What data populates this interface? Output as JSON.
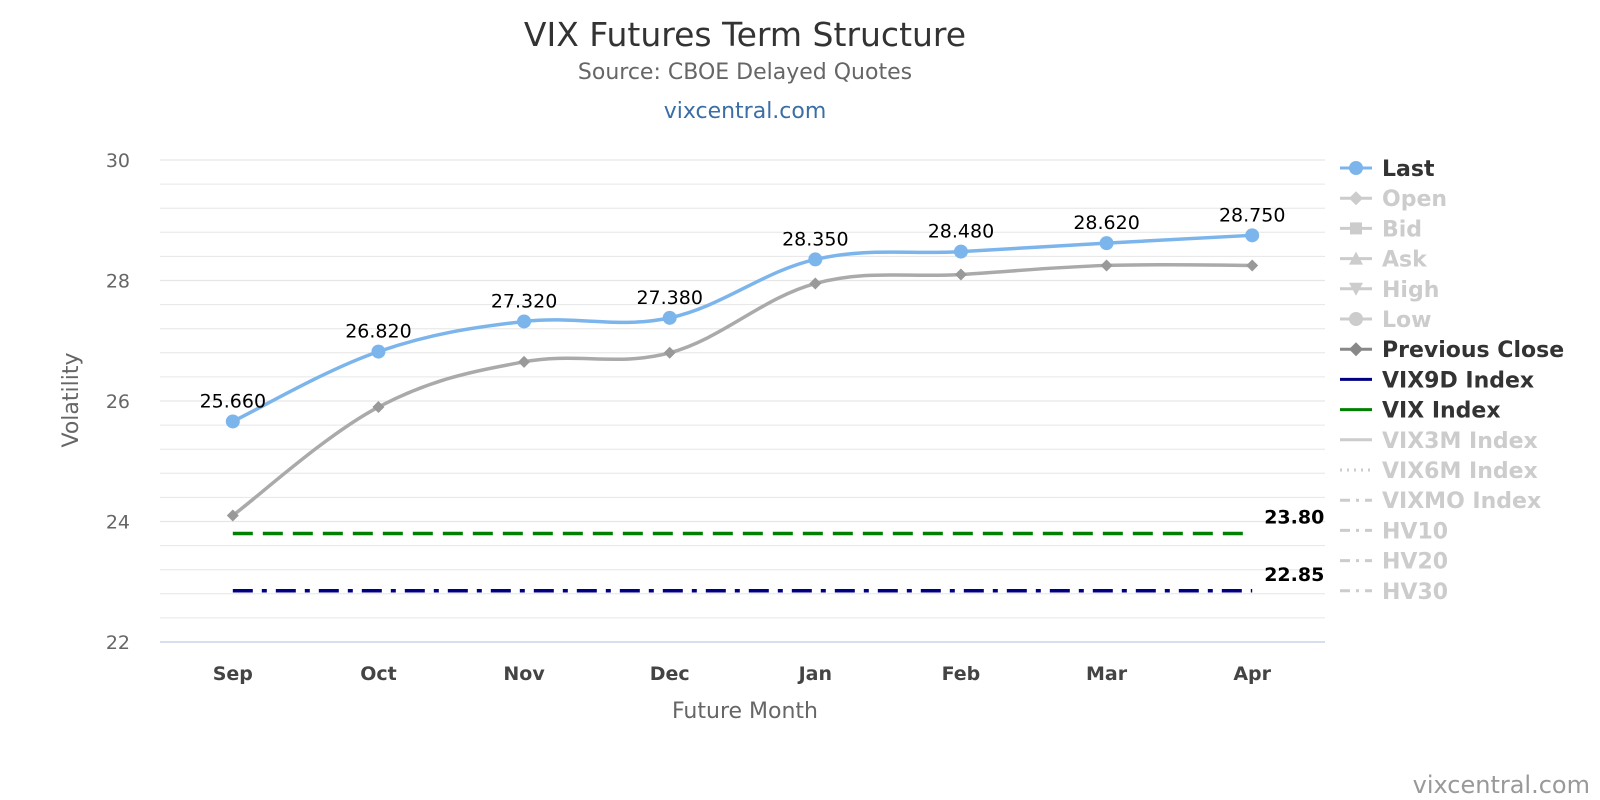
{
  "chart_data": {
    "type": "line",
    "title": "VIX Futures Term Structure",
    "subtitle": "Source: CBOE Delayed Quotes",
    "link": "vixcentral.com",
    "credits": "vixcentral.com",
    "xlabel": "Future Month",
    "ylabel": "Volatility",
    "ylim": [
      22,
      30
    ],
    "yticks": [
      "22",
      "24",
      "26",
      "28",
      "30"
    ],
    "categories": [
      "Sep",
      "Oct",
      "Nov",
      "Dec",
      "Jan",
      "Feb",
      "Mar",
      "Apr"
    ],
    "grid": true,
    "legend_position": "right",
    "series": [
      {
        "name": "Last",
        "values": [
          25.66,
          26.82,
          27.32,
          27.38,
          28.35,
          28.48,
          28.62,
          28.75
        ],
        "labels": [
          "25.660",
          "26.820",
          "27.320",
          "27.380",
          "28.350",
          "28.480",
          "28.620",
          "28.750"
        ],
        "color": "#7cb5ec",
        "visible": true,
        "marker": "circle"
      },
      {
        "name": "Previous Close",
        "values": [
          24.1,
          25.9,
          26.65,
          26.8,
          27.95,
          28.1,
          28.25,
          28.25
        ],
        "color": "#aaaaaa",
        "visible": true,
        "marker": "diamond"
      },
      {
        "name": "VIX9D Index",
        "value": 22.85,
        "label": "22.85",
        "color": "#000080",
        "visible": true,
        "dash": "dashdot"
      },
      {
        "name": "VIX Index",
        "value": 23.8,
        "label": "23.80",
        "color": "#008000",
        "visible": true,
        "dash": "dash"
      }
    ],
    "legend": [
      {
        "name": "Last",
        "symbol": "circle-line",
        "visible": true,
        "color": "#7cb5ec"
      },
      {
        "name": "Open",
        "symbol": "diamond-line",
        "visible": false,
        "color": "#cccccc"
      },
      {
        "name": "Bid",
        "symbol": "square-line",
        "visible": false,
        "color": "#cccccc"
      },
      {
        "name": "Ask",
        "symbol": "triangle-line",
        "visible": false,
        "color": "#cccccc"
      },
      {
        "name": "High",
        "symbol": "triangle-down-line",
        "visible": false,
        "color": "#cccccc"
      },
      {
        "name": "Low",
        "symbol": "circle-line",
        "visible": false,
        "color": "#cccccc"
      },
      {
        "name": "Previous Close",
        "symbol": "diamond-line",
        "visible": true,
        "color": "#888888"
      },
      {
        "name": "VIX9D Index",
        "symbol": "line",
        "visible": true,
        "color": "#000080"
      },
      {
        "name": "VIX Index",
        "symbol": "line",
        "visible": true,
        "color": "#008000"
      },
      {
        "name": "VIX3M Index",
        "symbol": "line",
        "visible": false,
        "color": "#cccccc"
      },
      {
        "name": "VIX6M Index",
        "symbol": "dot-line",
        "visible": false,
        "color": "#cccccc"
      },
      {
        "name": "VIXMO Index",
        "symbol": "dashdot-line",
        "visible": false,
        "color": "#cccccc"
      },
      {
        "name": "HV10",
        "symbol": "dashdot-line",
        "visible": false,
        "color": "#cccccc"
      },
      {
        "name": "HV20",
        "symbol": "dashdot-line",
        "visible": false,
        "color": "#cccccc"
      },
      {
        "name": "HV30",
        "symbol": "dashdot-line",
        "visible": false,
        "color": "#cccccc"
      }
    ],
    "colors": {
      "legend_active_text": "#333333",
      "legend_hidden_text": "#cccccc",
      "grid": "#e6e6e6",
      "axis": "#ccd6eb"
    }
  }
}
